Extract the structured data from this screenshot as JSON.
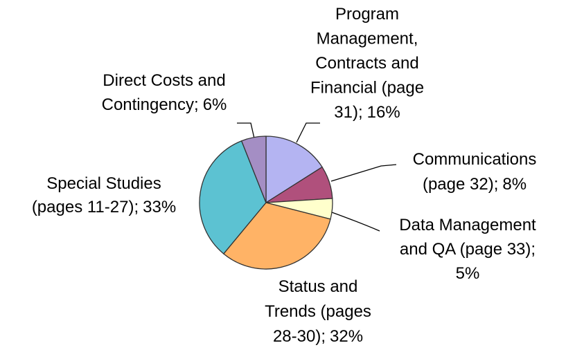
{
  "chart_data": {
    "type": "pie",
    "categories": [
      [
        "Program",
        "Management,",
        "Contracts and",
        "Financial (page",
        "31);"
      ],
      [
        "Communications",
        "(page 32);"
      ],
      [
        "Data Management",
        "and QA (page 33);"
      ],
      [
        "Status and",
        "Trends (pages",
        "28-30);"
      ],
      [
        "Special Studies",
        "(pages 11-27);"
      ],
      [
        "Direct Costs and",
        "Contingency;"
      ]
    ],
    "values": [
      16,
      8,
      5,
      32,
      33,
      6
    ],
    "value_labels": [
      "16%",
      "8%",
      "5%",
      "32%",
      "33%",
      "6%"
    ],
    "colors": [
      "#b4b4f2",
      "#b0507c",
      "#ffffcc",
      "#ffb366",
      "#5cc2d2",
      "#a48ec4"
    ]
  }
}
